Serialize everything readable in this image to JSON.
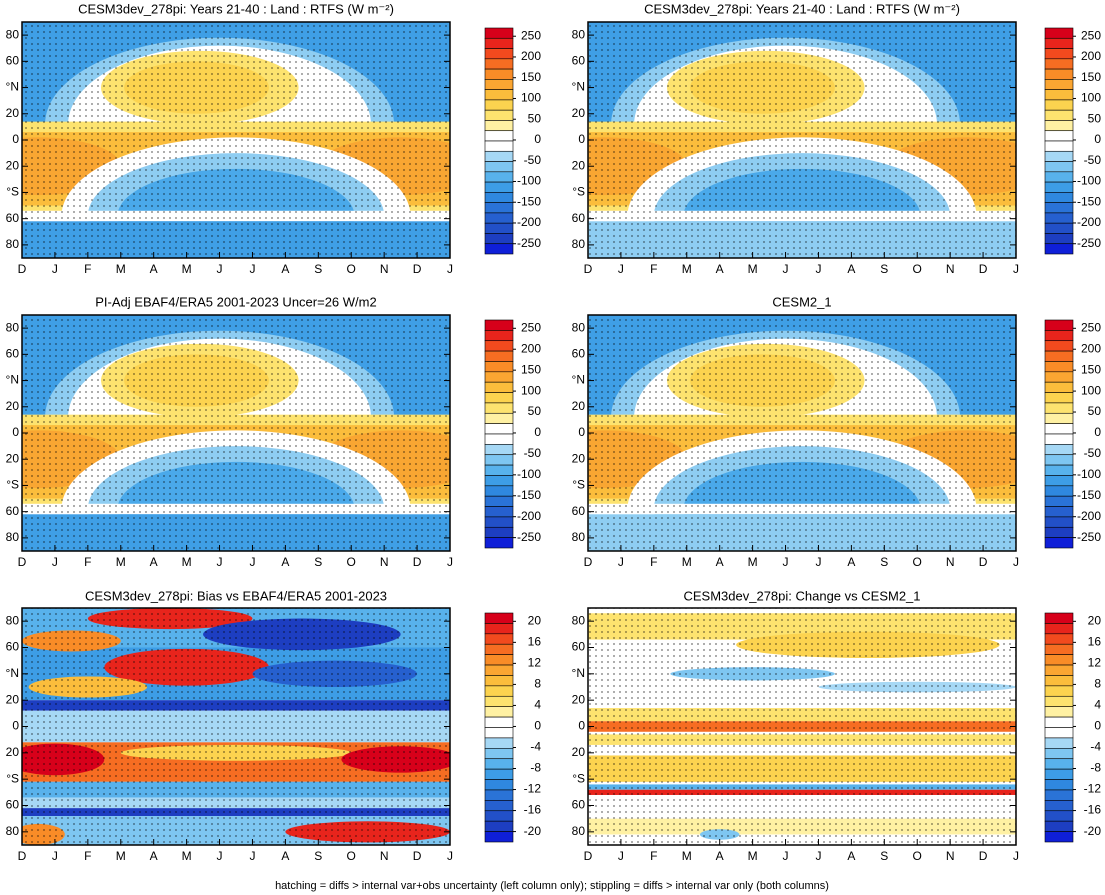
{
  "chart_data": [
    {
      "type": "contour",
      "title": "CESM3dev_278pi: Years 21-40 : Land : RTFS (W m⁻²)",
      "categories": [
        "D",
        "J",
        "F",
        "M",
        "A",
        "M",
        "J",
        "J",
        "A",
        "S",
        "O",
        "N",
        "D",
        "J"
      ],
      "ylim": [
        -90,
        90
      ],
      "yticks": [
        80,
        60,
        {
          "value": 40,
          "label": "°N"
        },
        20,
        0,
        {
          "value": -20,
          "label": "20"
        },
        {
          "value": -40,
          "label": "°S"
        },
        {
          "value": -60,
          "label": "60"
        },
        {
          "value": -80,
          "label": "80"
        }
      ],
      "field": "mean",
      "colorbar": {
        "ticks": [
          250,
          200,
          150,
          100,
          50,
          0,
          -50,
          -100,
          -150,
          -200,
          -250
        ]
      }
    },
    {
      "type": "contour",
      "title": "CESM3dev_278pi: Years 21-40 : Land : RTFS (W m⁻²)",
      "categories": [
        "D",
        "J",
        "F",
        "M",
        "A",
        "M",
        "J",
        "J",
        "A",
        "S",
        "O",
        "N",
        "D",
        "J"
      ],
      "ylim": [
        -90,
        90
      ],
      "yticks": [
        80,
        60,
        {
          "value": 40,
          "label": "°N"
        },
        20,
        0,
        {
          "value": -20,
          "label": "20"
        },
        {
          "value": -40,
          "label": "°S"
        },
        {
          "value": -60,
          "label": "60"
        },
        {
          "value": -80,
          "label": "80"
        }
      ],
      "field": "mean",
      "colorbar": {
        "ticks": [
          250,
          200,
          150,
          100,
          50,
          0,
          -50,
          -100,
          -150,
          -200,
          -250
        ]
      }
    },
    {
      "type": "contour",
      "title": "PI-Adj EBAF4/ERA5 2001-2023 Uncer=26 W/m2",
      "categories": [
        "D",
        "J",
        "F",
        "M",
        "A",
        "M",
        "J",
        "J",
        "A",
        "S",
        "O",
        "N",
        "D",
        "J"
      ],
      "ylim": [
        -90,
        90
      ],
      "yticks": [
        80,
        60,
        {
          "value": 40,
          "label": "°N"
        },
        20,
        0,
        {
          "value": -20,
          "label": "20"
        },
        {
          "value": -40,
          "label": "°S"
        },
        {
          "value": -60,
          "label": "60"
        },
        {
          "value": -80,
          "label": "80"
        }
      ],
      "field": "mean",
      "colorbar": {
        "ticks": [
          250,
          200,
          150,
          100,
          50,
          0,
          -50,
          -100,
          -150,
          -200,
          -250
        ]
      }
    },
    {
      "type": "contour",
      "title": "CESM2_1",
      "categories": [
        "D",
        "J",
        "F",
        "M",
        "A",
        "M",
        "J",
        "J",
        "A",
        "S",
        "O",
        "N",
        "D",
        "J"
      ],
      "ylim": [
        -90,
        90
      ],
      "yticks": [
        80,
        60,
        {
          "value": 40,
          "label": "°N"
        },
        20,
        0,
        {
          "value": -20,
          "label": "20"
        },
        {
          "value": -40,
          "label": "°S"
        },
        {
          "value": -60,
          "label": "60"
        },
        {
          "value": -80,
          "label": "80"
        }
      ],
      "field": "mean",
      "colorbar": {
        "ticks": [
          250,
          200,
          150,
          100,
          50,
          0,
          -50,
          -100,
          -150,
          -200,
          -250
        ]
      }
    },
    {
      "type": "contour",
      "title": "CESM3dev_278pi: Bias vs EBAF4/ERA5 2001-2023",
      "categories": [
        "D",
        "J",
        "F",
        "M",
        "A",
        "M",
        "J",
        "J",
        "A",
        "S",
        "O",
        "N",
        "D",
        "J"
      ],
      "ylim": [
        -90,
        90
      ],
      "yticks": [
        80,
        60,
        {
          "value": 40,
          "label": "°N"
        },
        20,
        0,
        {
          "value": -20,
          "label": "20"
        },
        {
          "value": -40,
          "label": "°S"
        },
        {
          "value": -60,
          "label": "60"
        },
        {
          "value": -80,
          "label": "80"
        }
      ],
      "field": "bias",
      "colorbar": {
        "ticks": [
          20,
          16,
          12,
          8,
          4,
          0,
          -4,
          -8,
          -12,
          -16,
          -20
        ]
      }
    },
    {
      "type": "contour",
      "title": "CESM3dev_278pi: Change vs CESM2_1",
      "categories": [
        "D",
        "J",
        "F",
        "M",
        "A",
        "M",
        "J",
        "J",
        "A",
        "S",
        "O",
        "N",
        "D",
        "J"
      ],
      "ylim": [
        -90,
        90
      ],
      "yticks": [
        80,
        60,
        {
          "value": 40,
          "label": "°N"
        },
        20,
        0,
        {
          "value": -20,
          "label": "20"
        },
        {
          "value": -40,
          "label": "°S"
        },
        {
          "value": -60,
          "label": "60"
        },
        {
          "value": -80,
          "label": "80"
        }
      ],
      "field": "change",
      "colorbar": {
        "ticks": [
          20,
          16,
          12,
          8,
          4,
          0,
          -4,
          -8,
          -12,
          -16,
          -20
        ]
      }
    }
  ],
  "footnote": "hatching = diffs > internal var+obs uncertainty (left column only); stippling = diffs > internal var only (both columns)"
}
